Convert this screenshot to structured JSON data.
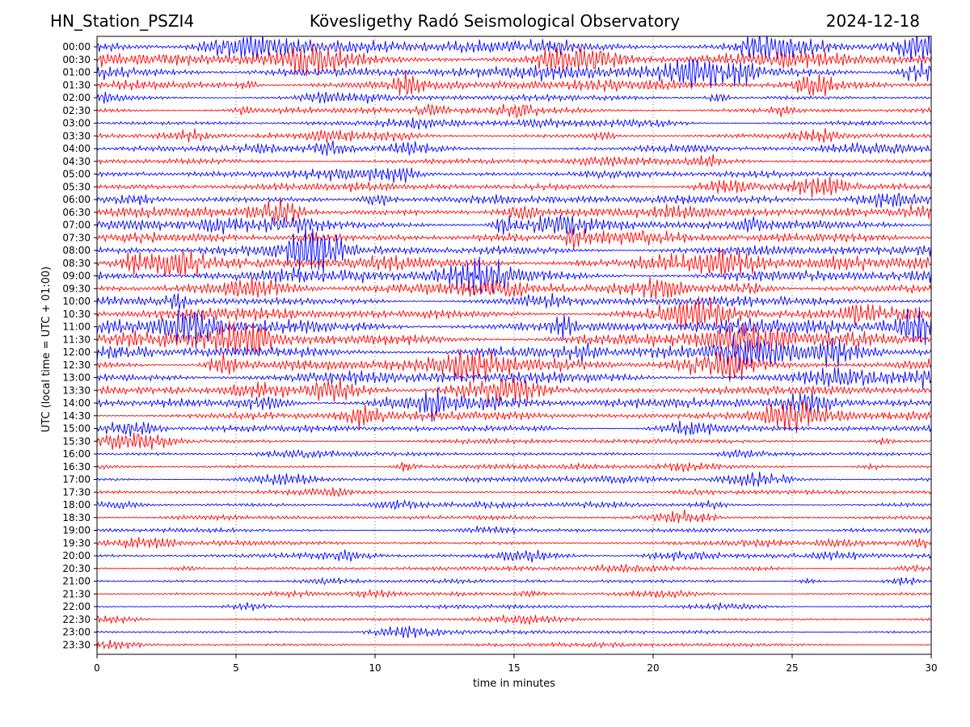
{
  "header": {
    "station": "HN_Station_PSZI4",
    "observatory": "Kövesligethy Radó Seismological Observatory",
    "date": "2024-12-18"
  },
  "chart_data": {
    "type": "line",
    "title": "Kövesligethy Radó Seismological Observatory",
    "xlabel": "time in minutes",
    "ylabel": "UTC (local time = UTC + 01:00)",
    "xlim": [
      0,
      30
    ],
    "x_ticks": [
      0,
      5,
      10,
      15,
      20,
      25,
      30
    ],
    "grid": {
      "vertical_dotted": true
    },
    "colors": {
      "even_trace": "#0000ff",
      "odd_trace": "#ff0000"
    },
    "rows": [
      {
        "label": "00:00",
        "amp": 1.0
      },
      {
        "label": "00:30",
        "amp": 1.0
      },
      {
        "label": "01:00",
        "amp": 0.95
      },
      {
        "label": "01:30",
        "amp": 0.75
      },
      {
        "label": "02:00",
        "amp": 0.3
      },
      {
        "label": "02:30",
        "amp": 0.35
      },
      {
        "label": "03:00",
        "amp": 0.3
      },
      {
        "label": "03:30",
        "amp": 0.25
      },
      {
        "label": "04:00",
        "amp": 0.3
      },
      {
        "label": "04:30",
        "amp": 0.35
      },
      {
        "label": "05:00",
        "amp": 0.3
      },
      {
        "label": "05:30",
        "amp": 0.45
      },
      {
        "label": "06:00",
        "amp": 0.55
      },
      {
        "label": "06:30",
        "amp": 0.6
      },
      {
        "label": "07:00",
        "amp": 0.6
      },
      {
        "label": "07:30",
        "amp": 0.55
      },
      {
        "label": "08:00",
        "amp": 0.75
      },
      {
        "label": "08:30",
        "amp": 0.9
      },
      {
        "label": "09:00",
        "amp": 0.9
      },
      {
        "label": "09:30",
        "amp": 0.8
      },
      {
        "label": "10:00",
        "amp": 0.6
      },
      {
        "label": "10:30",
        "amp": 0.8
      },
      {
        "label": "11:00",
        "amp": 1.0
      },
      {
        "label": "11:30",
        "amp": 1.0
      },
      {
        "label": "12:00",
        "amp": 1.0
      },
      {
        "label": "12:30",
        "amp": 0.95
      },
      {
        "label": "13:00",
        "amp": 0.8
      },
      {
        "label": "13:30",
        "amp": 0.55
      },
      {
        "label": "14:00",
        "amp": 0.6
      },
      {
        "label": "14:30",
        "amp": 0.55
      },
      {
        "label": "15:00",
        "amp": 0.35
      },
      {
        "label": "15:30",
        "amp": 0.2
      },
      {
        "label": "16:00",
        "amp": 0.15
      },
      {
        "label": "16:30",
        "amp": 0.18
      },
      {
        "label": "17:00",
        "amp": 0.2
      },
      {
        "label": "17:30",
        "amp": 0.15
      },
      {
        "label": "18:00",
        "amp": 0.2
      },
      {
        "label": "18:30",
        "amp": 0.15
      },
      {
        "label": "19:00",
        "amp": 0.15
      },
      {
        "label": "19:30",
        "amp": 0.2
      },
      {
        "label": "20:00",
        "amp": 0.2
      },
      {
        "label": "20:30",
        "amp": 0.15
      },
      {
        "label": "21:00",
        "amp": 0.12
      },
      {
        "label": "21:30",
        "amp": 0.12
      },
      {
        "label": "22:00",
        "amp": 0.1
      },
      {
        "label": "22:30",
        "amp": 0.12
      },
      {
        "label": "23:00",
        "amp": 0.12
      },
      {
        "label": "23:30",
        "amp": 0.15
      }
    ]
  }
}
